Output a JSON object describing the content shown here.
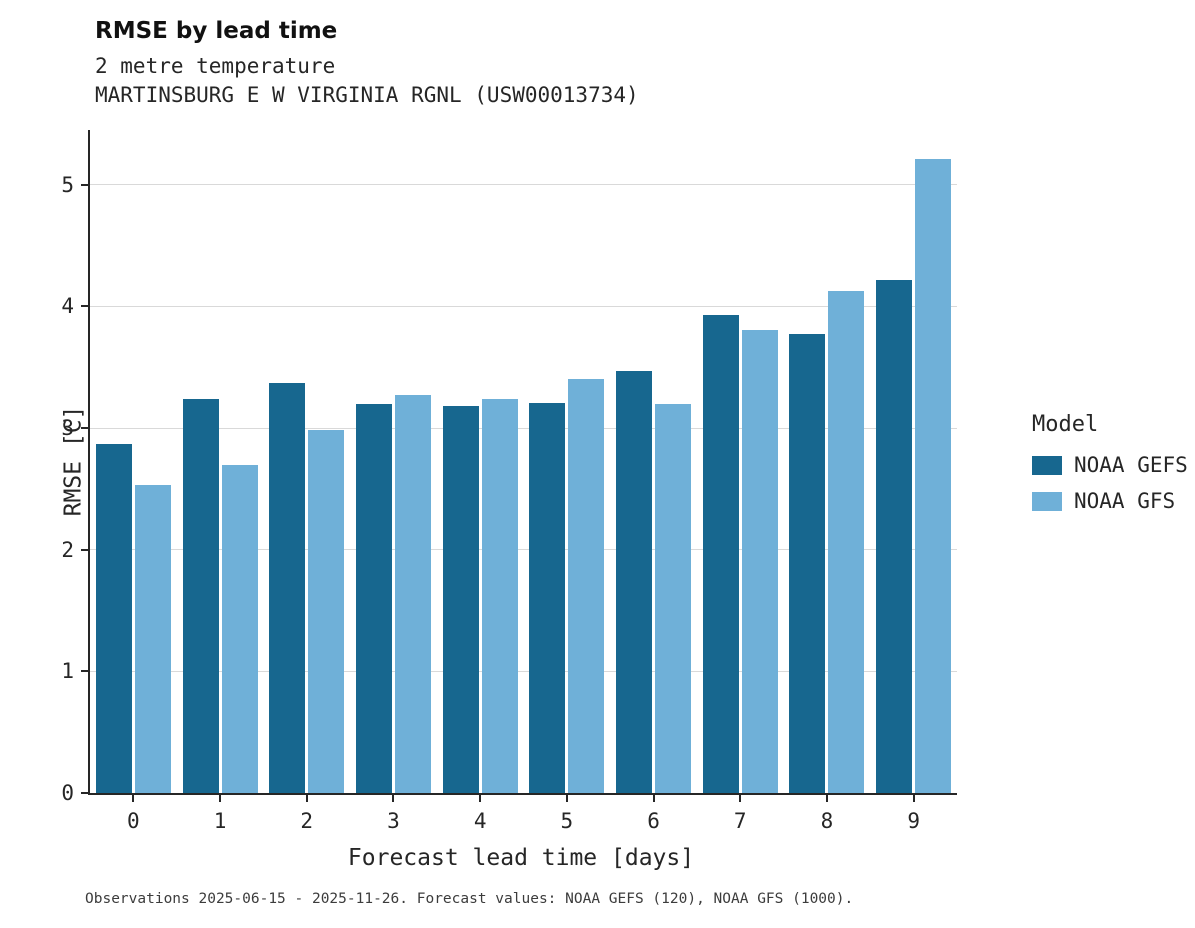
{
  "header": {
    "title": "RMSE by lead time",
    "subtitle1": "2 metre temperature",
    "subtitle2": "MARTINSBURG E W VIRGINIA RGNL (USW00013734)"
  },
  "legend": {
    "title": "Model",
    "entries": [
      {
        "label": "NOAA GEFS",
        "color": "#17678f"
      },
      {
        "label": "NOAA GFS",
        "color": "#6fb0d8"
      }
    ]
  },
  "footer": {
    "caption": "Observations 2025-06-15 - 2025-11-26. Forecast values: NOAA GEFS (120), NOAA GFS (1000)."
  },
  "chart_data": {
    "type": "bar",
    "title": "RMSE by lead time",
    "subtitle": "2 metre temperature — MARTINSBURG E W VIRGINIA RGNL (USW00013734)",
    "xlabel": "Forecast lead time [days]",
    "ylabel": "RMSE [C]",
    "categories": [
      "0",
      "1",
      "2",
      "3",
      "4",
      "5",
      "6",
      "7",
      "8",
      "9"
    ],
    "series": [
      {
        "name": "NOAA GEFS",
        "color": "#17678f",
        "values": [
          2.87,
          3.24,
          3.37,
          3.2,
          3.18,
          3.21,
          3.47,
          3.93,
          3.77,
          4.22
        ]
      },
      {
        "name": "NOAA GFS",
        "color": "#6fb0d8",
        "values": [
          2.53,
          2.7,
          2.98,
          3.27,
          3.24,
          3.4,
          3.2,
          3.81,
          4.13,
          5.21
        ]
      }
    ],
    "ylim": [
      0,
      5.45
    ],
    "yticks": [
      0,
      1,
      2,
      3,
      4,
      5
    ],
    "grid": true,
    "legend_position": "right",
    "legend_title": "Model"
  }
}
